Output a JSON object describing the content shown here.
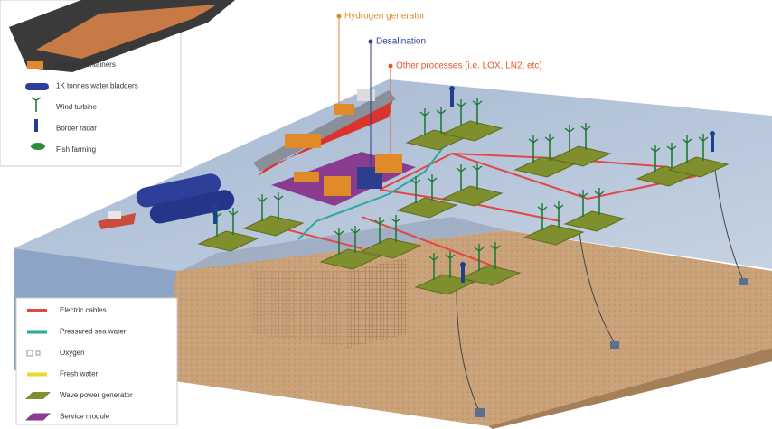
{
  "callouts": {
    "hydrogen_generator": "Hydrogen generator",
    "desalination": "Desalination",
    "other_processes": "Other processes (i.e. LOX, LN2, etc)"
  },
  "legend_top": {
    "items": [
      "storage containers",
      "1K tonnes water bladders",
      "Wind turbine",
      "Border radar",
      "Fish farming"
    ]
  },
  "legend_bottom": {
    "items": [
      "Electric cables",
      "Pressured sea water",
      "Oxygen",
      "Fresh water",
      "Wave power generator",
      "Service module"
    ]
  }
}
